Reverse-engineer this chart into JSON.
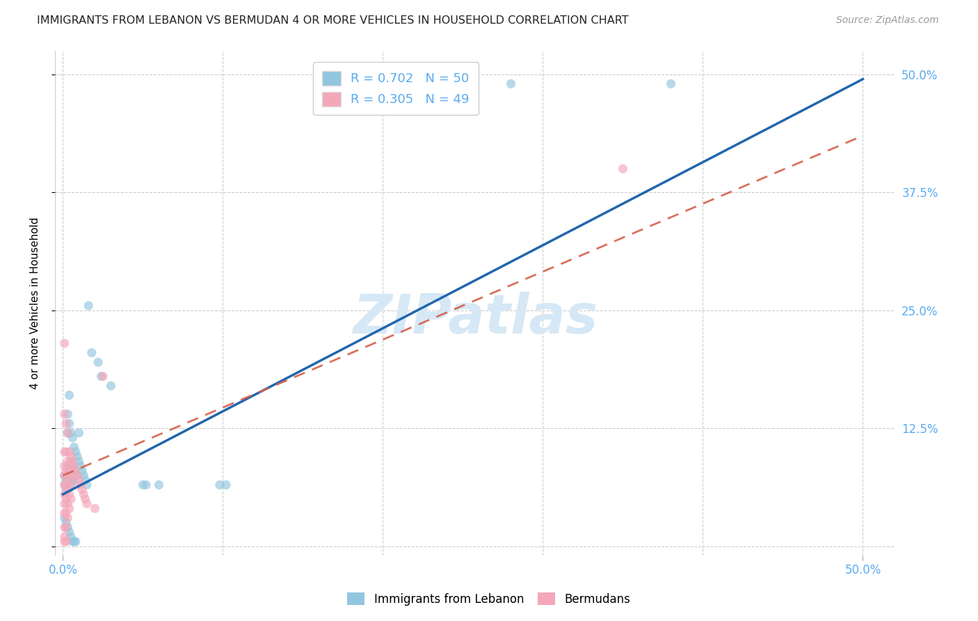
{
  "title": "IMMIGRANTS FROM LEBANON VS BERMUDAN 4 OR MORE VEHICLES IN HOUSEHOLD CORRELATION CHART",
  "source": "Source: ZipAtlas.com",
  "xlabel_label": "Immigrants from Lebanon",
  "ylabel_label": "4 or more Vehicles in Household",
  "legend_entry1_R": "0.702",
  "legend_entry1_N": "50",
  "legend_entry2_R": "0.305",
  "legend_entry2_N": "49",
  "blue_color": "#92c5de",
  "pink_color": "#f4a7b9",
  "blue_line_color": "#2166ac",
  "pink_line_color": "#d6604d",
  "pink_line_dash": [
    6,
    4
  ],
  "watermark_text": "ZIPatlas",
  "watermark_color": "#d6e8f5",
  "title_color": "#222222",
  "tick_color": "#5aabf0",
  "legend_text_color": "#5aabf0",
  "grid_color": "#cccccc",
  "blue_line_slope": 0.88,
  "blue_line_intercept": 0.055,
  "pink_line_slope": 0.72,
  "pink_line_intercept": 0.075,
  "blue_scatter": [
    [
      0.001,
      0.065
    ],
    [
      0.001,
      0.075
    ],
    [
      0.002,
      0.07
    ],
    [
      0.002,
      0.06
    ],
    [
      0.003,
      0.14
    ],
    [
      0.003,
      0.12
    ],
    [
      0.003,
      0.085
    ],
    [
      0.004,
      0.16
    ],
    [
      0.004,
      0.13
    ],
    [
      0.004,
      0.08
    ],
    [
      0.005,
      0.12
    ],
    [
      0.005,
      0.09
    ],
    [
      0.005,
      0.065
    ],
    [
      0.006,
      0.115
    ],
    [
      0.006,
      0.085
    ],
    [
      0.006,
      0.07
    ],
    [
      0.007,
      0.105
    ],
    [
      0.007,
      0.085
    ],
    [
      0.007,
      0.07
    ],
    [
      0.008,
      0.1
    ],
    [
      0.008,
      0.08
    ],
    [
      0.009,
      0.095
    ],
    [
      0.009,
      0.075
    ],
    [
      0.01,
      0.12
    ],
    [
      0.01,
      0.09
    ],
    [
      0.011,
      0.085
    ],
    [
      0.012,
      0.08
    ],
    [
      0.013,
      0.075
    ],
    [
      0.014,
      0.07
    ],
    [
      0.015,
      0.065
    ],
    [
      0.016,
      0.255
    ],
    [
      0.018,
      0.205
    ],
    [
      0.022,
      0.195
    ],
    [
      0.024,
      0.18
    ],
    [
      0.03,
      0.17
    ],
    [
      0.05,
      0.065
    ],
    [
      0.052,
      0.065
    ],
    [
      0.06,
      0.065
    ],
    [
      0.098,
      0.065
    ],
    [
      0.102,
      0.065
    ],
    [
      0.001,
      0.03
    ],
    [
      0.002,
      0.025
    ],
    [
      0.003,
      0.02
    ],
    [
      0.004,
      0.015
    ],
    [
      0.005,
      0.01
    ],
    [
      0.006,
      0.005
    ],
    [
      0.007,
      0.005
    ],
    [
      0.008,
      0.005
    ],
    [
      0.28,
      0.49
    ],
    [
      0.38,
      0.49
    ]
  ],
  "pink_scatter": [
    [
      0.001,
      0.215
    ],
    [
      0.001,
      0.14
    ],
    [
      0.001,
      0.1
    ],
    [
      0.001,
      0.085
    ],
    [
      0.001,
      0.075
    ],
    [
      0.001,
      0.065
    ],
    [
      0.001,
      0.055
    ],
    [
      0.001,
      0.045
    ],
    [
      0.001,
      0.035
    ],
    [
      0.001,
      0.02
    ],
    [
      0.001,
      0.01
    ],
    [
      0.001,
      0.005
    ],
    [
      0.002,
      0.13
    ],
    [
      0.002,
      0.1
    ],
    [
      0.002,
      0.08
    ],
    [
      0.002,
      0.065
    ],
    [
      0.002,
      0.05
    ],
    [
      0.002,
      0.035
    ],
    [
      0.002,
      0.02
    ],
    [
      0.002,
      0.005
    ],
    [
      0.003,
      0.12
    ],
    [
      0.003,
      0.09
    ],
    [
      0.003,
      0.075
    ],
    [
      0.003,
      0.06
    ],
    [
      0.003,
      0.045
    ],
    [
      0.003,
      0.03
    ],
    [
      0.004,
      0.1
    ],
    [
      0.004,
      0.085
    ],
    [
      0.004,
      0.07
    ],
    [
      0.004,
      0.055
    ],
    [
      0.004,
      0.04
    ],
    [
      0.005,
      0.095
    ],
    [
      0.005,
      0.08
    ],
    [
      0.005,
      0.065
    ],
    [
      0.005,
      0.05
    ],
    [
      0.006,
      0.09
    ],
    [
      0.006,
      0.075
    ],
    [
      0.007,
      0.085
    ],
    [
      0.008,
      0.08
    ],
    [
      0.009,
      0.075
    ],
    [
      0.01,
      0.07
    ],
    [
      0.011,
      0.065
    ],
    [
      0.012,
      0.06
    ],
    [
      0.013,
      0.055
    ],
    [
      0.014,
      0.05
    ],
    [
      0.015,
      0.045
    ],
    [
      0.02,
      0.04
    ],
    [
      0.025,
      0.18
    ],
    [
      0.35,
      0.4
    ]
  ],
  "xlim": [
    -0.005,
    0.52
  ],
  "ylim": [
    -0.01,
    0.525
  ],
  "x_ticks": [
    0.0,
    0.1,
    0.2,
    0.3,
    0.4,
    0.5
  ],
  "x_tick_labels": [
    "0.0%",
    "",
    "",
    "",
    "",
    "50.0%"
  ],
  "y_ticks": [
    0.0,
    0.125,
    0.25,
    0.375,
    0.5
  ],
  "y_tick_labels_right": [
    "",
    "12.5%",
    "25.0%",
    "37.5%",
    "50.0%"
  ],
  "figsize": [
    14.06,
    8.92
  ],
  "dpi": 100
}
